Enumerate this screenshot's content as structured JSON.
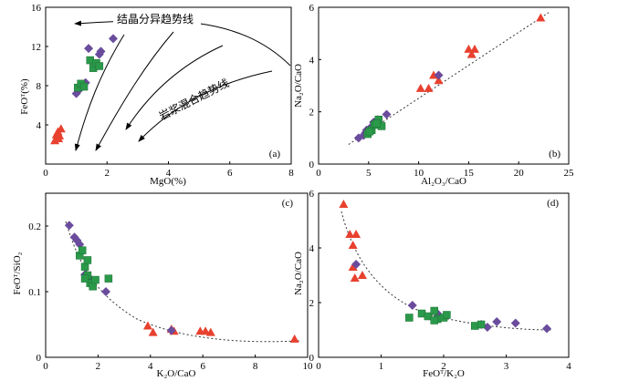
{
  "colors": {
    "triangle": "#E8412F",
    "diamond": "#6A4C9C",
    "square": "#2A9A4A"
  },
  "chart_data": [
    {
      "type": "scatter",
      "id": "a",
      "panel_label": "(a)",
      "xlabel": "MgO(%)",
      "ylabel": "FeOᵀ(%)",
      "xlim": [
        0,
        8
      ],
      "ylim": [
        0,
        16
      ],
      "xticks": [
        0,
        2,
        4,
        6,
        8
      ],
      "yticks": [
        4,
        8,
        12,
        16
      ],
      "series": [
        {
          "name": "triangle",
          "points": [
            [
              0.3,
              2.4
            ],
            [
              0.35,
              3.0
            ],
            [
              0.4,
              3.3
            ],
            [
              0.45,
              2.9
            ],
            [
              0.5,
              3.6
            ],
            [
              0.42,
              2.6
            ]
          ]
        },
        {
          "name": "diamond",
          "points": [
            [
              1.0,
              7.2
            ],
            [
              1.15,
              8.0
            ],
            [
              1.3,
              8.3
            ],
            [
              1.4,
              11.8
            ],
            [
              1.75,
              11.2
            ],
            [
              1.8,
              11.5
            ],
            [
              2.2,
              12.8
            ],
            [
              1.1,
              7.6
            ]
          ]
        },
        {
          "name": "square",
          "points": [
            [
              1.05,
              7.8
            ],
            [
              1.15,
              8.2
            ],
            [
              1.25,
              7.9
            ],
            [
              1.45,
              10.6
            ],
            [
              1.55,
              9.8
            ],
            [
              1.65,
              10.3
            ],
            [
              1.75,
              10.0
            ]
          ]
        }
      ],
      "annotations": [
        "结晶分异趋势线",
        "岩浆混合趋势线"
      ]
    },
    {
      "type": "scatter",
      "id": "b",
      "panel_label": "(b)",
      "xlabel": "Al₂O₃/CaO",
      "ylabel": "Na₂O/CaO",
      "xlim": [
        0,
        25
      ],
      "ylim": [
        0,
        6
      ],
      "xticks": [
        0,
        5,
        10,
        15,
        20,
        25
      ],
      "yticks": [
        0,
        2,
        4,
        6
      ],
      "trend": [
        [
          3,
          0.75
        ],
        [
          23,
          5.8
        ]
      ],
      "series": [
        {
          "name": "triangle",
          "points": [
            [
              10.2,
              2.9
            ],
            [
              11.0,
              2.9
            ],
            [
              11.5,
              3.4
            ],
            [
              12.0,
              3.2
            ],
            [
              15.0,
              4.4
            ],
            [
              15.3,
              4.2
            ],
            [
              15.6,
              4.4
            ],
            [
              22.2,
              5.6
            ]
          ]
        },
        {
          "name": "diamond",
          "points": [
            [
              4.0,
              1.0
            ],
            [
              4.5,
              1.1
            ],
            [
              4.8,
              1.3
            ],
            [
              5.2,
              1.4
            ],
            [
              5.5,
              1.6
            ],
            [
              5.9,
              1.7
            ],
            [
              6.8,
              1.9
            ],
            [
              12.0,
              3.4
            ],
            [
              4.7,
              1.2
            ]
          ]
        },
        {
          "name": "square",
          "points": [
            [
              4.9,
              1.15
            ],
            [
              5.3,
              1.3
            ],
            [
              5.6,
              1.5
            ],
            [
              6.0,
              1.7
            ],
            [
              6.3,
              1.45
            ],
            [
              5.1,
              1.25
            ],
            [
              5.8,
              1.55
            ]
          ]
        }
      ]
    },
    {
      "type": "scatter",
      "id": "c",
      "panel_label": "(c)",
      "xlabel": "K₂O/CaO",
      "ylabel": "FeOᵀ/SiO₂",
      "xlim": [
        0,
        10
      ],
      "ylim": [
        0,
        0.25
      ],
      "xticks": [
        0,
        2,
        4,
        6,
        8,
        10
      ],
      "yticks": [
        0,
        0.1,
        0.2
      ],
      "yticklabels": [
        "0",
        "0.1",
        "0.2"
      ],
      "series": [
        {
          "name": "triangle",
          "points": [
            [
              3.9,
              0.048
            ],
            [
              4.1,
              0.038
            ],
            [
              4.8,
              0.043
            ],
            [
              4.9,
              0.04
            ],
            [
              5.9,
              0.04
            ],
            [
              6.1,
              0.04
            ],
            [
              6.3,
              0.038
            ],
            [
              9.5,
              0.028
            ]
          ]
        },
        {
          "name": "diamond",
          "points": [
            [
              0.9,
              0.201
            ],
            [
              1.1,
              0.183
            ],
            [
              1.2,
              0.178
            ],
            [
              1.3,
              0.172
            ],
            [
              1.5,
              0.126
            ],
            [
              1.7,
              0.12
            ],
            [
              2.3,
              0.1
            ],
            [
              4.8,
              0.041
            ]
          ]
        },
        {
          "name": "square",
          "points": [
            [
              1.3,
              0.155
            ],
            [
              1.4,
              0.163
            ],
            [
              1.5,
              0.138
            ],
            [
              1.6,
              0.148
            ],
            [
              1.6,
              0.125
            ],
            [
              1.7,
              0.113
            ],
            [
              1.8,
              0.108
            ],
            [
              1.9,
              0.118
            ],
            [
              2.4,
              0.12
            ],
            [
              1.5,
              0.12
            ]
          ]
        }
      ]
    },
    {
      "type": "scatter",
      "id": "d",
      "panel_label": "(d)",
      "xlabel": "FeOᵀ/K₂O",
      "ylabel": "Na₂O/CaO",
      "xlim": [
        0,
        4
      ],
      "ylim": [
        0,
        6
      ],
      "xticks": [
        0,
        1,
        2,
        3,
        4
      ],
      "yticks": [
        0,
        2,
        4,
        6
      ],
      "series": [
        {
          "name": "triangle",
          "points": [
            [
              0.4,
              5.6
            ],
            [
              0.5,
              4.5
            ],
            [
              0.55,
              4.1
            ],
            [
              0.6,
              4.5
            ],
            [
              0.55,
              3.3
            ],
            [
              0.58,
              2.9
            ],
            [
              0.7,
              3.0
            ]
          ]
        },
        {
          "name": "diamond",
          "points": [
            [
              0.6,
              3.4
            ],
            [
              1.5,
              1.9
            ],
            [
              1.9,
              1.6
            ],
            [
              2.6,
              1.2
            ],
            [
              2.7,
              1.1
            ],
            [
              2.85,
              1.3
            ],
            [
              3.15,
              1.25
            ],
            [
              3.65,
              1.05
            ]
          ]
        },
        {
          "name": "square",
          "points": [
            [
              1.45,
              1.45
            ],
            [
              1.65,
              1.6
            ],
            [
              1.75,
              1.5
            ],
            [
              1.85,
              1.7
            ],
            [
              1.9,
              1.4
            ],
            [
              2.0,
              1.45
            ],
            [
              2.05,
              1.55
            ],
            [
              2.5,
              1.15
            ],
            [
              2.6,
              1.2
            ],
            [
              1.85,
              1.35
            ]
          ]
        }
      ]
    }
  ]
}
